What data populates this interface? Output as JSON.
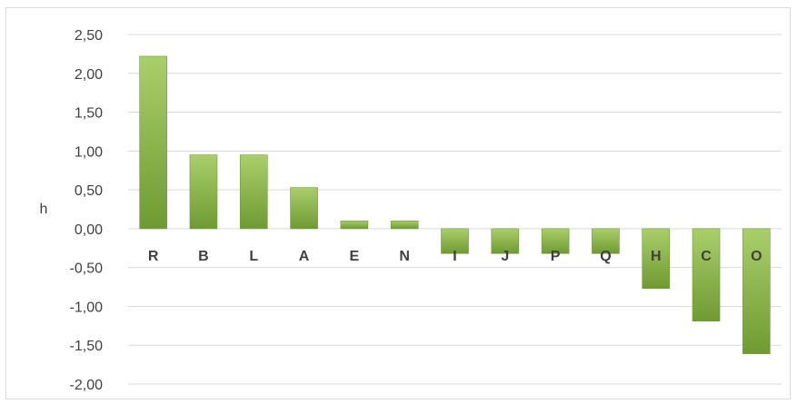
{
  "chart_data": {
    "type": "bar",
    "title": "",
    "xlabel": "",
    "ylabel": "h",
    "categories": [
      "R",
      "B",
      "L",
      "A",
      "E",
      "N",
      "I",
      "J",
      "P",
      "Q",
      "H",
      "C",
      "O"
    ],
    "values": [
      2.22,
      0.95,
      0.95,
      0.53,
      0.1,
      0.1,
      -0.32,
      -0.32,
      -0.32,
      -0.32,
      -0.77,
      -1.19,
      -1.61
    ],
    "ylim": [
      -2.0,
      2.5
    ],
    "yticks": [
      "2,50",
      "2,00",
      "1,50",
      "1,00",
      "0,50",
      "0,00",
      "-0,50",
      "-1,00",
      "-1,50",
      "-2,00"
    ],
    "ytick_values": [
      2.5,
      2.0,
      1.5,
      1.0,
      0.5,
      0.0,
      -0.5,
      -1.0,
      -1.5,
      -2.0
    ],
    "grid": true,
    "legend": "none",
    "colors": {
      "bar_top": "#a9cf6b",
      "bar_bottom": "#6f9a32",
      "grid": "#d9d9d9",
      "text": "#404040"
    }
  }
}
